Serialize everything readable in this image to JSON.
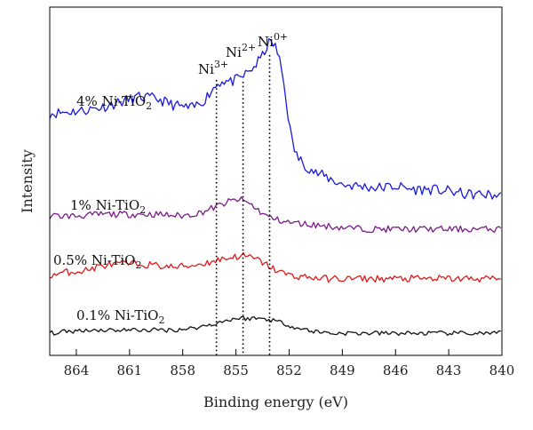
{
  "chart_data": {
    "type": "line",
    "title": "",
    "xlabel": "Binding energy (eV)",
    "ylabel": "Intensity",
    "xlim": [
      865.5,
      840
    ],
    "x_reversed": true,
    "ylim": [
      0,
      100
    ],
    "y_ticks_shown": false,
    "grid": false,
    "x_ticks": [
      864,
      861,
      858,
      855,
      852,
      849,
      846,
      843,
      840
    ],
    "x_tick_labels": [
      "864",
      "861",
      "858",
      "855",
      "852",
      "849",
      "846",
      "843",
      "840"
    ],
    "peak_markers": [
      {
        "x": 856.1,
        "label_main": "Ni",
        "label_sup": "3+"
      },
      {
        "x": 854.6,
        "label_main": "Ni",
        "label_sup": "2+"
      },
      {
        "x": 853.1,
        "label_main": "Ni",
        "label_sup": "0+"
      }
    ],
    "series": [
      {
        "name": "4% Ni-TiO2",
        "label_main": "4% Ni-TiO",
        "label_sub": "2",
        "color": "#1a1adf",
        "points": [
          [
            865.5,
            70.5
          ],
          [
            864.5,
            71
          ],
          [
            863.5,
            71.5
          ],
          [
            862.5,
            72.5
          ],
          [
            861.5,
            74
          ],
          [
            860.5,
            75.5
          ],
          [
            859.5,
            75
          ],
          [
            858.5,
            73
          ],
          [
            857.5,
            72
          ],
          [
            856.8,
            74.5
          ],
          [
            856.3,
            78
          ],
          [
            855.8,
            80.5
          ],
          [
            855.3,
            80
          ],
          [
            854.8,
            81
          ],
          [
            854.3,
            83
          ],
          [
            853.9,
            85
          ],
          [
            853.5,
            88
          ],
          [
            853.2,
            91.5
          ],
          [
            853.0,
            92
          ],
          [
            852.8,
            91
          ],
          [
            852.6,
            88
          ],
          [
            852.4,
            83
          ],
          [
            852.2,
            76
          ],
          [
            852.0,
            67.5
          ],
          [
            851.8,
            61
          ],
          [
            851.5,
            57
          ],
          [
            851.0,
            54.5
          ],
          [
            850.5,
            52.5
          ],
          [
            850.0,
            51.5
          ],
          [
            849.0,
            49
          ],
          [
            848.0,
            48.5
          ],
          [
            847.0,
            48
          ],
          [
            846.0,
            48.5
          ],
          [
            845.0,
            47.5
          ],
          [
            844.0,
            47.5
          ],
          [
            843.0,
            47
          ],
          [
            842.0,
            46
          ],
          [
            841.0,
            46
          ],
          [
            840.0,
            45.5
          ]
        ]
      },
      {
        "name": "1% Ni-TiO2",
        "label_main": "1% Ni-TiO",
        "label_sub": "2",
        "color": "#7b1a8a",
        "points": [
          [
            865.5,
            39.5
          ],
          [
            864.0,
            39.5
          ],
          [
            862.5,
            40
          ],
          [
            861.0,
            40
          ],
          [
            859.5,
            40
          ],
          [
            858.0,
            39.5
          ],
          [
            857.0,
            40.5
          ],
          [
            856.0,
            42.5
          ],
          [
            855.3,
            44
          ],
          [
            854.8,
            44.5
          ],
          [
            854.3,
            43.5
          ],
          [
            853.8,
            41.5
          ],
          [
            853.3,
            39.5
          ],
          [
            852.8,
            38.5
          ],
          [
            852.0,
            37.5
          ],
          [
            851.0,
            37
          ],
          [
            850.0,
            36.5
          ],
          [
            849.0,
            36
          ],
          [
            847.5,
            35.5
          ],
          [
            846.0,
            35.5
          ],
          [
            844.5,
            35.5
          ],
          [
            843.0,
            35.5
          ],
          [
            841.5,
            35.5
          ],
          [
            840.0,
            35.5
          ]
        ]
      },
      {
        "name": "0.5% Ni-TiO2",
        "label_main": "0.5% Ni-TiO",
        "label_sub": "2",
        "color": "#e01a1a",
        "points": [
          [
            865.5,
            21.5
          ],
          [
            864.5,
            22.5
          ],
          [
            863.5,
            23
          ],
          [
            862.5,
            24.5
          ],
          [
            861.5,
            25
          ],
          [
            860.5,
            25
          ],
          [
            859.5,
            24.5
          ],
          [
            858.5,
            24
          ],
          [
            857.5,
            24.5
          ],
          [
            856.5,
            25.5
          ],
          [
            855.8,
            26.5
          ],
          [
            855.2,
            27
          ],
          [
            854.7,
            27.5
          ],
          [
            854.2,
            27
          ],
          [
            853.7,
            26
          ],
          [
            853.2,
            24.5
          ],
          [
            852.7,
            23
          ],
          [
            852.0,
            21.5
          ],
          [
            851.0,
            21
          ],
          [
            850.0,
            20.5
          ],
          [
            849.0,
            20.5
          ],
          [
            847.5,
            20.5
          ],
          [
            846.0,
            20.5
          ],
          [
            844.5,
            20.5
          ],
          [
            843.0,
            20.5
          ],
          [
            841.5,
            20.5
          ],
          [
            840.0,
            20.5
          ]
        ]
      },
      {
        "name": "0.1% Ni-TiO2",
        "label_main": "0.1% Ni-TiO",
        "label_sub": "2",
        "color": "#111111",
        "points": [
          [
            865.5,
            4
          ],
          [
            864.5,
            4.5
          ],
          [
            863.5,
            5
          ],
          [
            862.5,
            5
          ],
          [
            861.5,
            5
          ],
          [
            860.5,
            5
          ],
          [
            859.5,
            5
          ],
          [
            858.5,
            5
          ],
          [
            857.5,
            5.5
          ],
          [
            856.5,
            6.5
          ],
          [
            855.8,
            7.5
          ],
          [
            855.0,
            8.5
          ],
          [
            854.3,
            8.5
          ],
          [
            853.6,
            8.5
          ],
          [
            852.9,
            8
          ],
          [
            852.3,
            7
          ],
          [
            851.5,
            5.5
          ],
          [
            850.5,
            4.5
          ],
          [
            849.5,
            4
          ],
          [
            848.0,
            4
          ],
          [
            846.5,
            4
          ],
          [
            845.0,
            4
          ],
          [
            843.5,
            4
          ],
          [
            842.0,
            4
          ],
          [
            840.0,
            4
          ]
        ]
      }
    ]
  }
}
